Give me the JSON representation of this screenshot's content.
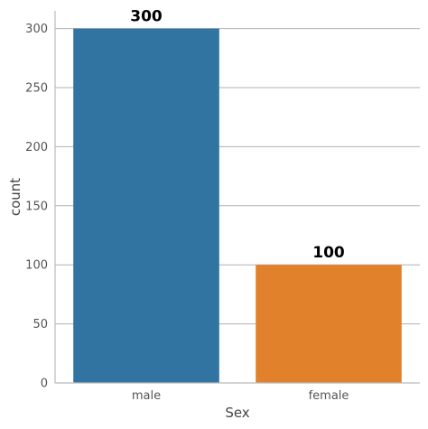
{
  "chart_data": {
    "type": "bar",
    "categories": [
      "male",
      "female"
    ],
    "values": [
      300,
      100
    ],
    "data_labels": [
      "300",
      "100"
    ],
    "colors": [
      "#3274a1",
      "#e1812c"
    ],
    "xlabel": "Sex",
    "ylabel": "count",
    "ylim": [
      0,
      315
    ],
    "yticks": [
      0,
      50,
      100,
      150,
      200,
      250,
      300
    ],
    "grid": "horizontal",
    "legend": "none"
  }
}
